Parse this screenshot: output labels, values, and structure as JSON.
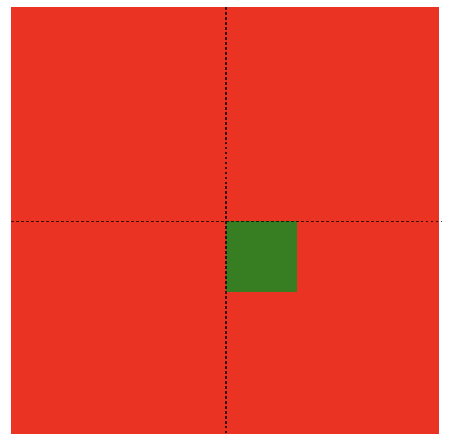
{
  "canvas": {
    "square_color": "#ea3323",
    "target_color": "#377e22",
    "guide_color": "#000000",
    "guide_style": "dashed"
  }
}
